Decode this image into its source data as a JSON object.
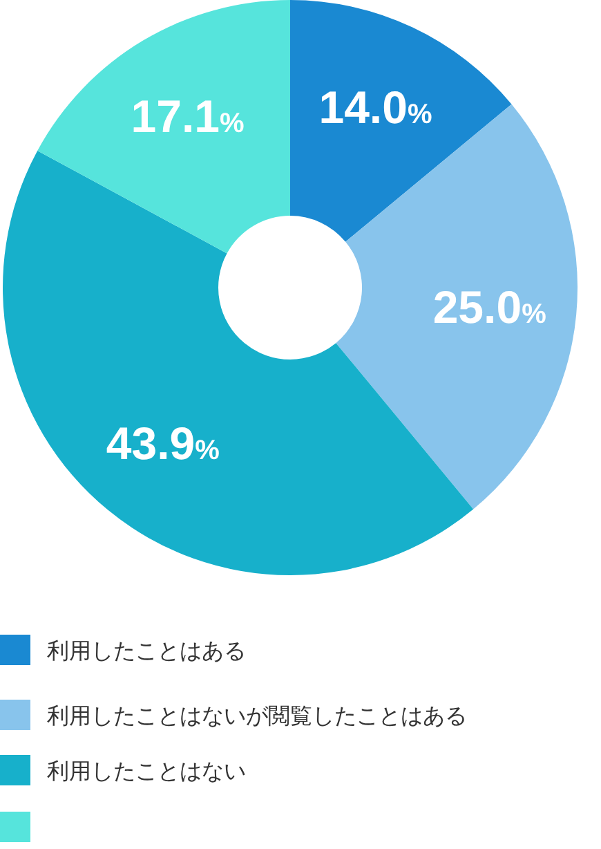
{
  "chart_data": {
    "type": "donut",
    "categories": [
      "利用したことはある",
      "利用したことはないが閲覧したことはある",
      "利用したことはない",
      null
    ],
    "values": [
      14.0,
      25.0,
      43.9,
      17.1
    ],
    "colors": [
      "#1a89d2",
      "#88c4ec",
      "#17b0cb",
      "#56e4dc"
    ],
    "value_labels": [
      "14.0%",
      "25.0%",
      "43.9%",
      "17.1%"
    ],
    "legend": "bottom"
  }
}
